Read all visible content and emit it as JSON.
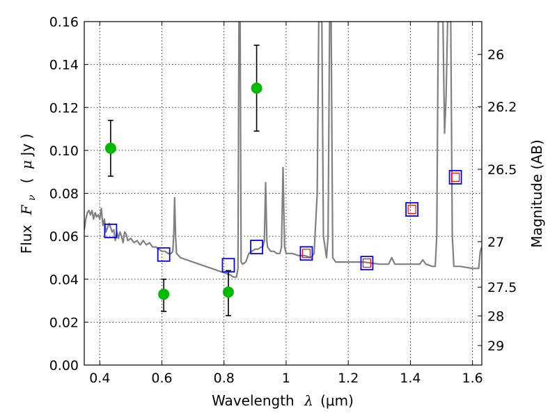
{
  "chart_data": {
    "type": "scatter",
    "xlabel_text": "Wavelength",
    "xlabel_symbol": "λ",
    "xlabel_unit": "(μm)",
    "ylabel_text": "Flux",
    "ylabel_symbol": "F",
    "ylabel_symbol_sub": "ν",
    "ylabel_unit_open": "(",
    "ylabel_unit_mu": "μ",
    "ylabel_unit_rest": "Jy )",
    "y2label": "Magnitude (AB)",
    "xlim": [
      0.35,
      1.63
    ],
    "ylim": [
      0.0,
      0.16
    ],
    "xticks": [
      0.4,
      0.6,
      0.8,
      1.0,
      1.2,
      1.4,
      1.6
    ],
    "xtick_labels": [
      "0.4",
      "0.6",
      "0.8",
      "1",
      "1.2",
      "1.4",
      "1.6"
    ],
    "yticks": [
      0.0,
      0.02,
      0.04,
      0.06,
      0.08,
      0.1,
      0.12,
      0.14,
      0.16
    ],
    "ytick_labels": [
      "0.00",
      "0.02",
      "0.04",
      "0.06",
      "0.08",
      "0.10",
      "0.12",
      "0.14",
      "0.16"
    ],
    "y2ticks": [
      {
        "flux": 0.1447,
        "label": "26"
      },
      {
        "flux": 0.1204,
        "label": "26.2"
      },
      {
        "flux": 0.0912,
        "label": "26.5"
      },
      {
        "flux": 0.0575,
        "label": "27"
      },
      {
        "flux": 0.0363,
        "label": "27.5"
      },
      {
        "flux": 0.0229,
        "label": "28"
      },
      {
        "flux": 0.0091,
        "label": "29"
      }
    ],
    "grid": true,
    "series": [
      {
        "type": "line",
        "color": "#808080",
        "points": [
          [
            0.35,
            0.063
          ],
          [
            0.355,
            0.068
          ],
          [
            0.36,
            0.071
          ],
          [
            0.365,
            0.072
          ],
          [
            0.37,
            0.07
          ],
          [
            0.375,
            0.072
          ],
          [
            0.38,
            0.068
          ],
          [
            0.385,
            0.071
          ],
          [
            0.39,
            0.069
          ],
          [
            0.395,
            0.07
          ],
          [
            0.4,
            0.068
          ],
          [
            0.405,
            0.073
          ],
          [
            0.41,
            0.065
          ],
          [
            0.415,
            0.068
          ],
          [
            0.42,
            0.062
          ],
          [
            0.425,
            0.064
          ],
          [
            0.43,
            0.066
          ],
          [
            0.435,
            0.064
          ],
          [
            0.44,
            0.062
          ],
          [
            0.445,
            0.063
          ],
          [
            0.45,
            0.058
          ],
          [
            0.455,
            0.062
          ],
          [
            0.46,
            0.059
          ],
          [
            0.465,
            0.062
          ],
          [
            0.47,
            0.06
          ],
          [
            0.475,
            0.057
          ],
          [
            0.48,
            0.062
          ],
          [
            0.485,
            0.061
          ],
          [
            0.49,
            0.058
          ],
          [
            0.5,
            0.059
          ],
          [
            0.51,
            0.057
          ],
          [
            0.52,
            0.058
          ],
          [
            0.53,
            0.056
          ],
          [
            0.54,
            0.058
          ],
          [
            0.55,
            0.056
          ],
          [
            0.56,
            0.057
          ],
          [
            0.57,
            0.055
          ],
          [
            0.58,
            0.055
          ],
          [
            0.59,
            0.054
          ],
          [
            0.6,
            0.053
          ],
          [
            0.61,
            0.053
          ],
          [
            0.62,
            0.052
          ],
          [
            0.63,
            0.052
          ],
          [
            0.635,
            0.053
          ],
          [
            0.638,
            0.06
          ],
          [
            0.641,
            0.078
          ],
          [
            0.644,
            0.06
          ],
          [
            0.647,
            0.052
          ],
          [
            0.66,
            0.05
          ],
          [
            0.68,
            0.049
          ],
          [
            0.7,
            0.048
          ],
          [
            0.72,
            0.047
          ],
          [
            0.74,
            0.046
          ],
          [
            0.76,
            0.045
          ],
          [
            0.78,
            0.044
          ],
          [
            0.8,
            0.043
          ],
          [
            0.82,
            0.042
          ],
          [
            0.83,
            0.041
          ],
          [
            0.84,
            0.041
          ],
          [
            0.845,
            0.045
          ],
          [
            0.848,
            0.16
          ],
          [
            0.852,
            0.16
          ],
          [
            0.855,
            0.048
          ],
          [
            0.86,
            0.047
          ],
          [
            0.87,
            0.048
          ],
          [
            0.88,
            0.052
          ],
          [
            0.89,
            0.053
          ],
          [
            0.9,
            0.054
          ],
          [
            0.91,
            0.054
          ],
          [
            0.92,
            0.055
          ],
          [
            0.925,
            0.055
          ],
          [
            0.93,
            0.058
          ],
          [
            0.934,
            0.085
          ],
          [
            0.938,
            0.058
          ],
          [
            0.94,
            0.055
          ],
          [
            0.95,
            0.053
          ],
          [
            0.96,
            0.053
          ],
          [
            0.97,
            0.052
          ],
          [
            0.98,
            0.052
          ],
          [
            0.985,
            0.055
          ],
          [
            0.99,
            0.092
          ],
          [
            0.995,
            0.055
          ],
          [
            1.0,
            0.052
          ],
          [
            1.02,
            0.052
          ],
          [
            1.04,
            0.051
          ],
          [
            1.06,
            0.051
          ],
          [
            1.08,
            0.05
          ],
          [
            1.09,
            0.052
          ],
          [
            1.1,
            0.08
          ],
          [
            1.105,
            0.16
          ],
          [
            1.115,
            0.16
          ],
          [
            1.12,
            0.06
          ],
          [
            1.13,
            0.05
          ],
          [
            1.135,
            0.06
          ],
          [
            1.14,
            0.16
          ],
          [
            1.145,
            0.16
          ],
          [
            1.15,
            0.05
          ],
          [
            1.16,
            0.048
          ],
          [
            1.2,
            0.048
          ],
          [
            1.25,
            0.048
          ],
          [
            1.3,
            0.047
          ],
          [
            1.33,
            0.047
          ],
          [
            1.34,
            0.05
          ],
          [
            1.35,
            0.047
          ],
          [
            1.4,
            0.047
          ],
          [
            1.43,
            0.047
          ],
          [
            1.44,
            0.049
          ],
          [
            1.45,
            0.047
          ],
          [
            1.47,
            0.046
          ],
          [
            1.48,
            0.046
          ],
          [
            1.485,
            0.06
          ],
          [
            1.49,
            0.16
          ],
          [
            1.5,
            0.16
          ],
          [
            1.505,
            0.16
          ],
          [
            1.51,
            0.108
          ],
          [
            1.515,
            0.125
          ],
          [
            1.52,
            0.16
          ],
          [
            1.53,
            0.16
          ],
          [
            1.535,
            0.06
          ],
          [
            1.54,
            0.046
          ],
          [
            1.56,
            0.046
          ],
          [
            1.6,
            0.045
          ],
          [
            1.62,
            0.045
          ],
          [
            1.625,
            0.053
          ],
          [
            1.63,
            0.055
          ]
        ]
      },
      {
        "type": "errorbar",
        "color": "#00bb00",
        "points": [
          {
            "x": 0.435,
            "y": 0.101,
            "lo": 0.088,
            "hi": 0.114
          },
          {
            "x": 0.606,
            "y": 0.033,
            "lo": 0.025,
            "hi": 0.04
          },
          {
            "x": 0.814,
            "y": 0.034,
            "lo": 0.023,
            "hi": 0.044
          },
          {
            "x": 0.905,
            "y": 0.129,
            "lo": 0.109,
            "hi": 0.149
          }
        ]
      },
      {
        "type": "model_squares",
        "color": "#0000ff",
        "points": [
          {
            "x": 0.435,
            "y": 0.0625
          },
          {
            "x": 0.606,
            "y": 0.0515
          },
          {
            "x": 0.814,
            "y": 0.0465
          },
          {
            "x": 0.905,
            "y": 0.055
          },
          {
            "x": 1.065,
            "y": 0.052
          },
          {
            "x": 1.26,
            "y": 0.0475
          },
          {
            "x": 1.405,
            "y": 0.0725
          },
          {
            "x": 1.545,
            "y": 0.0875
          }
        ]
      },
      {
        "type": "observed_squares",
        "color": "#ff0000",
        "points": [
          {
            "x": 1.065,
            "y": 0.052
          },
          {
            "x": 1.26,
            "y": 0.0475
          },
          {
            "x": 1.405,
            "y": 0.0725
          },
          {
            "x": 1.545,
            "y": 0.0875
          }
        ]
      }
    ]
  }
}
